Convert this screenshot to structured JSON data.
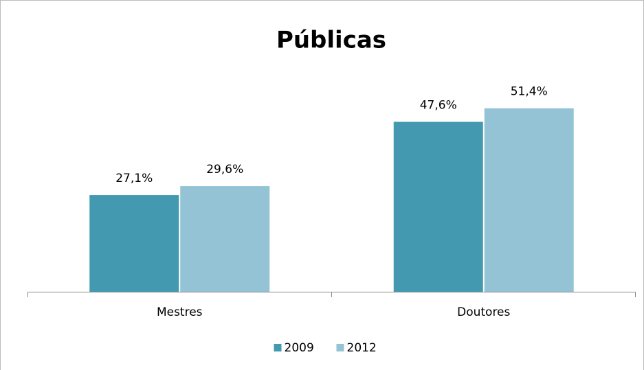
{
  "chart_data": {
    "type": "bar",
    "title": "Públicas",
    "categories": [
      "Mestres",
      "Doutores"
    ],
    "series": [
      {
        "name": "2009",
        "color": "#4399b0",
        "values": [
          27.1,
          47.6
        ],
        "value_labels": [
          "27,1%",
          "47,6%"
        ]
      },
      {
        "name": "2012",
        "color": "#93c3d5",
        "values": [
          29.6,
          51.4
        ],
        "value_labels": [
          "29,6%",
          "51,4%"
        ]
      }
    ],
    "legend": "bottom"
  }
}
